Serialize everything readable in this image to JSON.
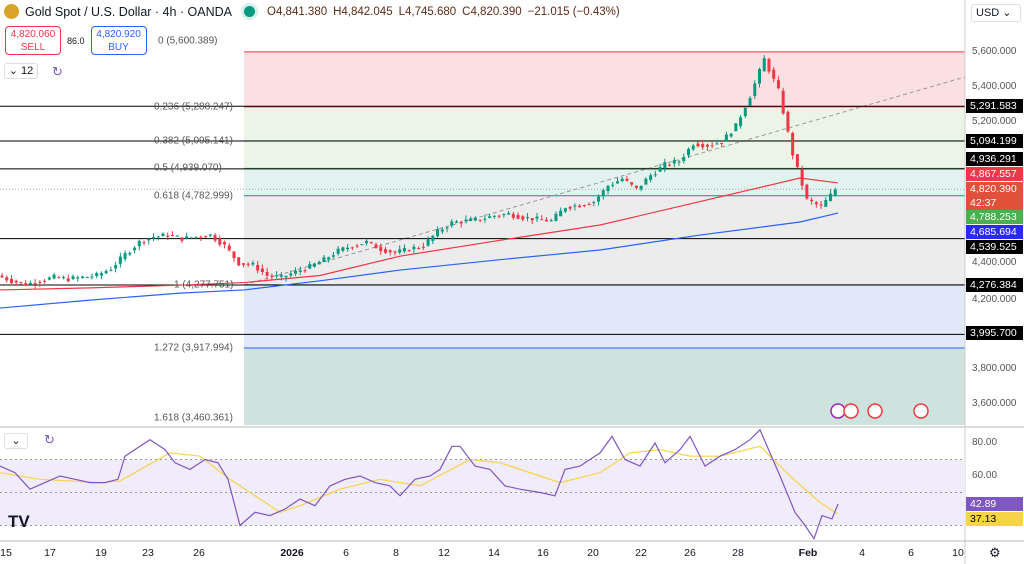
{
  "header": {
    "symbol": "Gold Spot / U.S. Dollar · 4h · OANDA",
    "open": "O4,841.380",
    "high": "H4,842.045",
    "low": "L4,745.680",
    "close": "C4,820.390",
    "change": "−21.015 (−0.43%)"
  },
  "trade": {
    "sell_price": "4,820.060",
    "sell_label": "SELL",
    "spread": "86.0",
    "buy_price": "4,820.920",
    "buy_label": "BUY"
  },
  "indicator_count": "12",
  "currency": "USD",
  "colors": {
    "up": "#089981",
    "down": "#f23645",
    "ma_fast": "#f23645",
    "ma_slow": "#2962ff",
    "rsi": "#7e57c2",
    "rsi_ma": "#f7d34a"
  },
  "chart_data": {
    "type": "candlestick",
    "y_range": [
      3500,
      5700
    ],
    "y_ticks": [
      "5,600.000",
      "5,400.000",
      "5,200.000",
      "4,400.000",
      "4,200.000",
      "3,800.000",
      "3,600.000"
    ],
    "x_ticks": [
      "15",
      "17",
      "19",
      "23",
      "26",
      "2026",
      "6",
      "8",
      "12",
      "14",
      "16",
      "20",
      "22",
      "26",
      "28",
      "Feb",
      "4",
      "6",
      "10"
    ],
    "closes": [
      4330,
      4300,
      4280,
      4300,
      4320,
      4310,
      4320,
      4330,
      4370,
      4450,
      4520,
      4550,
      4560,
      4540,
      4550,
      4560,
      4500,
      4400,
      4390,
      4330,
      4320,
      4350,
      4380,
      4420,
      4470,
      4500,
      4520,
      4480,
      4460,
      4480,
      4500,
      4580,
      4630,
      4640,
      4650,
      4670,
      4680,
      4660,
      4650,
      4640,
      4720,
      4730,
      4750,
      4840,
      4880,
      4820,
      4900,
      4960,
      4980,
      5080,
      5070,
      5090,
      5180,
      5350,
      5560,
      5380,
      5020,
      4760,
      4720,
      4820
    ],
    "ma_fast": [
      4248,
      4260,
      4275,
      4290,
      4330,
      4440,
      4530,
      4617,
      4750,
      4884,
      4856
    ],
    "ma_slow": [
      4145,
      4190,
      4230,
      4248,
      4300,
      4361,
      4420,
      4475,
      4560,
      4634,
      4685
    ],
    "fib": [
      {
        "label": "0 (5,600.389)",
        "value": 5600.389
      },
      {
        "label": "0.236 (5,288.247)",
        "value": 5288.247
      },
      {
        "label": "0.382 (5,095.141)",
        "value": 5095.141
      },
      {
        "label": "0.5 (4,939.070)",
        "value": 4939.07
      },
      {
        "label": "0.618 (4,782.999)",
        "value": 4782.999
      },
      {
        "label": "1 (4,277.751)",
        "value": 4277.751
      },
      {
        "label": "1.272 (3,917.994)",
        "value": 3917.994
      },
      {
        "label": "1.618 (3,460.361)",
        "value": 3460.361
      }
    ],
    "levels": [
      5291.583,
      5094.199,
      4936.291,
      4539.525,
      4276.384,
      3995.7
    ],
    "price_tags": [
      {
        "text": "5,291.583",
        "value": 5291.583,
        "color": "#000000"
      },
      {
        "text": "5,094.199",
        "value": 5094.199,
        "color": "#000000"
      },
      {
        "text": "4,936.291",
        "value": 4936.291,
        "color": "#000000"
      },
      {
        "text": "4,867.557",
        "value": 4867.557,
        "color": "#f23645"
      },
      {
        "text": "4,820.390",
        "value": 4820.39,
        "color": "#e0503a"
      },
      {
        "text": "4,788.253",
        "value": 4788.253,
        "color": "#4caf50"
      },
      {
        "text": "4,685.694",
        "value": 4685.694,
        "color": "#2929ff"
      },
      {
        "text": "4,539.525",
        "value": 4539.525,
        "color": "#000000"
      },
      {
        "text": "4,276.384",
        "value": 4276.384,
        "color": "#000000"
      },
      {
        "text": "3,995.700",
        "value": 3995.7,
        "color": "#000000"
      }
    ],
    "countdown": "42:37",
    "rsi": {
      "ticks": [
        "80.00",
        "60.00"
      ],
      "bands": [
        70,
        50,
        30
      ],
      "value": "42.89",
      "ma_value": "37.13",
      "values": [
        66,
        62,
        52,
        56,
        60,
        58,
        56,
        56,
        58,
        72,
        78,
        82,
        76,
        68,
        64,
        70,
        68,
        58,
        30,
        38,
        36,
        40,
        46,
        42,
        54,
        58,
        60,
        56,
        54,
        48,
        58,
        60,
        64,
        78,
        78,
        66,
        64,
        54,
        52,
        50,
        48,
        64,
        66,
        74,
        84,
        70,
        66,
        80,
        68,
        76,
        84,
        66,
        72,
        76,
        82,
        88,
        74,
        60,
        38,
        30,
        22,
        36,
        34,
        43
      ],
      "ma": [
        62,
        58,
        56,
        57,
        74,
        72,
        58,
        38,
        42,
        52,
        58,
        54,
        70,
        68,
        60,
        56,
        62,
        74,
        76,
        72,
        72,
        78,
        60,
        44,
        37
      ]
    }
  }
}
